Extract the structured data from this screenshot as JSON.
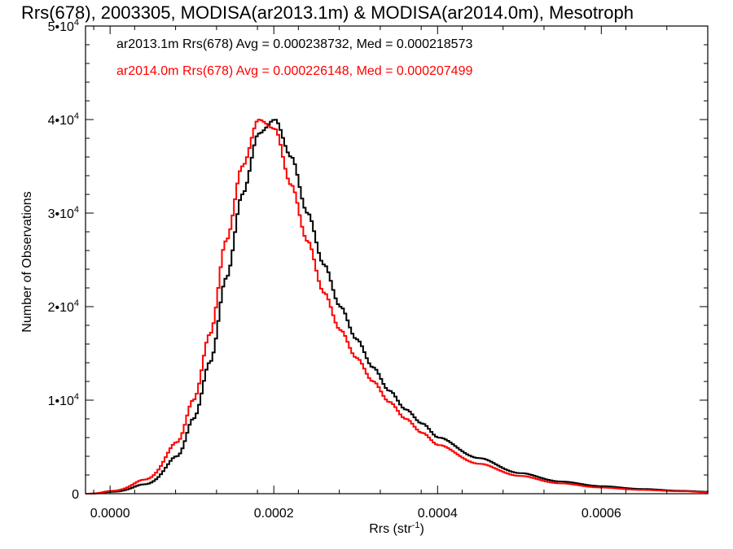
{
  "chart_data": {
    "type": "line",
    "title": "Rrs(678), 2003305, MODISA(ar2013.1m) & MODISA(ar2014.0m), Mesotroph",
    "xlabel": "Rrs (str⁻¹)",
    "ylabel": "Number of Observations",
    "xlim": [
      -3e-05,
      0.00073
    ],
    "ylim": [
      0,
      50000
    ],
    "x_ticks": [
      {
        "value": 0.0,
        "label": "0.0000"
      },
      {
        "value": 0.0002,
        "label": "0.0002"
      },
      {
        "value": 0.0004,
        "label": "0.0004"
      },
      {
        "value": 0.0006,
        "label": "0.0006"
      }
    ],
    "y_ticks": [
      {
        "value": 0,
        "label": "0"
      },
      {
        "value": 10000,
        "mant": "1",
        "exp": "4"
      },
      {
        "value": 20000,
        "mant": "2",
        "exp": "4"
      },
      {
        "value": 30000,
        "mant": "3",
        "exp": "4"
      },
      {
        "value": 40000,
        "mant": "4",
        "exp": "4"
      },
      {
        "value": 50000,
        "mant": "5",
        "exp": "4"
      }
    ],
    "grid": false,
    "legend_position": "top-left",
    "series": [
      {
        "name": "ar2013.1m",
        "color": "#000000",
        "stats_text": "ar2013.1m Rrs(678) Avg = 0.000238732, Med = 0.000218573",
        "x": [
          -3e-05,
          0.0,
          4e-05,
          8e-05,
          0.0001,
          0.00012,
          0.00014,
          0.00016,
          0.00018,
          0.0002,
          0.00022,
          0.00024,
          0.00026,
          0.00028,
          0.0003,
          0.00032,
          0.00034,
          0.00036,
          0.00038,
          0.0004,
          0.00045,
          0.0005,
          0.00055,
          0.0006,
          0.00065,
          0.0007,
          0.00073
        ],
        "y": [
          0,
          200,
          1000,
          4000,
          8000,
          14000,
          23000,
          32000,
          38500,
          40000,
          36000,
          30000,
          24500,
          20000,
          16500,
          13500,
          11000,
          9000,
          7500,
          6000,
          3800,
          2200,
          1300,
          800,
          500,
          300,
          200
        ]
      },
      {
        "name": "ar2014.0m",
        "color": "#ff0000",
        "stats_text": "ar2014.0m Rrs(678) Avg = 0.000226148, Med = 0.000207499",
        "x": [
          -3e-05,
          0.0,
          4e-05,
          8e-05,
          0.0001,
          0.00012,
          0.00014,
          0.00016,
          0.00018,
          0.0002,
          0.00022,
          0.00024,
          0.00026,
          0.00028,
          0.0003,
          0.00032,
          0.00034,
          0.00036,
          0.00038,
          0.0004,
          0.00045,
          0.0005,
          0.00055,
          0.0006,
          0.00065,
          0.0007,
          0.00073
        ],
        "y": [
          0,
          300,
          1500,
          5500,
          10000,
          17000,
          27000,
          35000,
          40000,
          39000,
          33000,
          27000,
          21500,
          17500,
          14500,
          12000,
          9800,
          8000,
          6500,
          5200,
          3200,
          1900,
          1100,
          650,
          400,
          250,
          150
        ]
      }
    ]
  }
}
